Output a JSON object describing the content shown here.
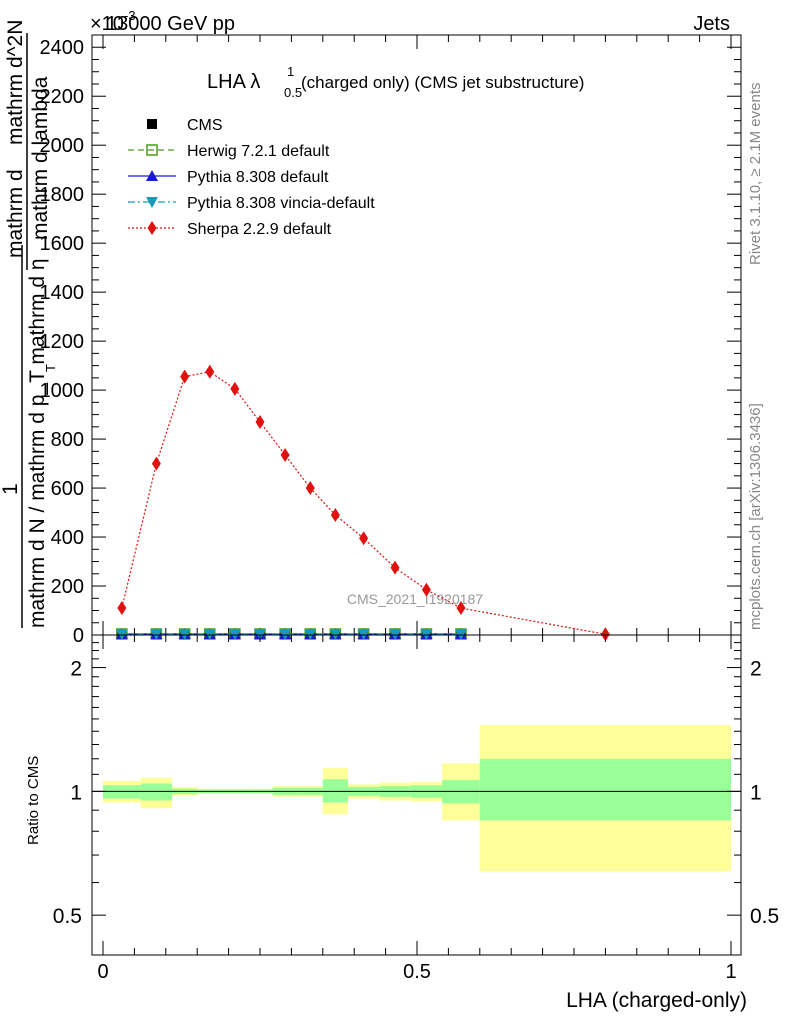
{
  "header": {
    "energy_label": "13000 GeV pp",
    "process_label": "Jets",
    "exponent_label": "×10",
    "exponent_power": "-3"
  },
  "side_labels": {
    "rivet": "Rivet 3.1.10, ≥ 2.1M events",
    "mcplots": "mcplots.cern.ch [arXiv:1306.3436]"
  },
  "watermark": "CMS_2021_I1920187",
  "chart_data": [
    {
      "type": "line",
      "title": {
        "prefix": "LHA λ",
        "sup": "1",
        "sub": "0.5",
        "suffix": "(charged only) (CMS jet substructure)"
      },
      "ylabel": {
        "numerator": "1",
        "denominator": "mathrm d N / mathrm d p_T mathrm d η",
        "extra_top": "mathrm d",
        "extra_middle": "mathrm d lambda",
        "extra_bottom": "mathrm d^2N",
        "extra_sub": "T"
      },
      "xlim": [
        0,
        1
      ],
      "ylim": [
        0,
        2.45
      ],
      "y_ticks": [
        0,
        0.2,
        0.4,
        0.6,
        0.8,
        1.0,
        1.2,
        1.4,
        1.6,
        1.8,
        2.0,
        2.2,
        2.4
      ],
      "y_tick_labels": [
        "0",
        "200",
        "400",
        "600",
        "800",
        "1000",
        "1200",
        "1400",
        "1600",
        "1800",
        "2000",
        "2200",
        "2400"
      ],
      "legend_position": "top-left",
      "series": [
        {
          "name": "CMS",
          "color": "#000000",
          "marker": "square",
          "line": "none",
          "x": [
            0.03,
            0.085,
            0.13,
            0.17,
            0.21,
            0.25,
            0.29,
            0.33,
            0.37,
            0.415,
            0.465,
            0.515,
            0.57
          ],
          "y": [
            0.004,
            0.004,
            0.004,
            0.004,
            0.004,
            0.004,
            0.004,
            0.004,
            0.004,
            0.004,
            0.004,
            0.004,
            0.004
          ]
        },
        {
          "name": "Herwig 7.2.1 default",
          "color": "#4a9b1a",
          "marker": "open-square",
          "line": "dashed",
          "x": [
            0.03,
            0.085,
            0.13,
            0.17,
            0.21,
            0.25,
            0.29,
            0.33,
            0.37,
            0.415,
            0.465,
            0.515,
            0.57
          ],
          "y": [
            0.004,
            0.004,
            0.004,
            0.004,
            0.004,
            0.004,
            0.004,
            0.004,
            0.004,
            0.004,
            0.004,
            0.004,
            0.004
          ]
        },
        {
          "name": "Pythia 8.308 default",
          "color": "#1a1ad0",
          "marker": "triangle-up",
          "line": "solid",
          "x": [
            0.03,
            0.085,
            0.13,
            0.17,
            0.21,
            0.25,
            0.29,
            0.33,
            0.37,
            0.415,
            0.465,
            0.515,
            0.57
          ],
          "y": [
            0.004,
            0.004,
            0.004,
            0.004,
            0.004,
            0.004,
            0.004,
            0.004,
            0.004,
            0.004,
            0.004,
            0.004,
            0.004
          ]
        },
        {
          "name": "Pythia 8.308 vincia-default",
          "color": "#1a9ab8",
          "marker": "triangle-down",
          "line": "dashdot",
          "x": [
            0.03,
            0.085,
            0.13,
            0.17,
            0.21,
            0.25,
            0.29,
            0.33,
            0.37,
            0.415,
            0.465,
            0.515,
            0.57
          ],
          "y": [
            0.004,
            0.004,
            0.004,
            0.004,
            0.004,
            0.004,
            0.004,
            0.004,
            0.004,
            0.004,
            0.004,
            0.004,
            0.004
          ]
        },
        {
          "name": "Sherpa 2.2.9 default",
          "color": "#e0120f",
          "marker": "diamond",
          "line": "dotted",
          "x": [
            0.03,
            0.085,
            0.13,
            0.17,
            0.21,
            0.25,
            0.29,
            0.33,
            0.37,
            0.415,
            0.465,
            0.515,
            0.57,
            0.8
          ],
          "y": [
            0.11,
            0.7,
            1.055,
            1.075,
            1.005,
            0.87,
            0.735,
            0.6,
            0.49,
            0.395,
            0.275,
            0.185,
            0.11,
            0.003
          ]
        }
      ]
    },
    {
      "type": "area",
      "ylabel": "Ratio to CMS",
      "xlabel": "LHA (charged-only)",
      "xlim": [
        0,
        1
      ],
      "ylim": [
        0.4,
        2.4
      ],
      "y_scale": "log",
      "x_ticks": [
        0,
        0.5,
        1
      ],
      "x_tick_labels": [
        "0",
        "0.5",
        "1"
      ],
      "y_ticks": [
        0.5,
        1,
        2
      ],
      "y_tick_labels": [
        "0.5",
        "1",
        "2"
      ],
      "reference_line": 1,
      "bins": [
        0.0,
        0.06,
        0.11,
        0.15,
        0.19,
        0.23,
        0.27,
        0.31,
        0.35,
        0.39,
        0.44,
        0.49,
        0.54,
        0.6,
        1.0
      ],
      "inner_band": {
        "color": "#99ff99",
        "low": [
          0.96,
          0.95,
          0.985,
          0.99,
          0.99,
          0.99,
          0.98,
          0.98,
          0.94,
          0.975,
          0.97,
          0.965,
          0.935,
          0.85
        ],
        "high": [
          1.035,
          1.045,
          1.015,
          1.01,
          1.01,
          1.01,
          1.02,
          1.02,
          1.07,
          1.025,
          1.03,
          1.035,
          1.065,
          1.2
        ]
      },
      "outer_band": {
        "color": "#ffff99",
        "low": [
          0.94,
          0.91,
          0.975,
          0.985,
          0.985,
          0.985,
          0.97,
          0.97,
          0.88,
          0.96,
          0.95,
          0.945,
          0.85,
          0.64
        ],
        "high": [
          1.06,
          1.08,
          1.025,
          1.015,
          1.015,
          1.015,
          1.03,
          1.03,
          1.14,
          1.04,
          1.05,
          1.055,
          1.17,
          1.45
        ]
      }
    }
  ]
}
